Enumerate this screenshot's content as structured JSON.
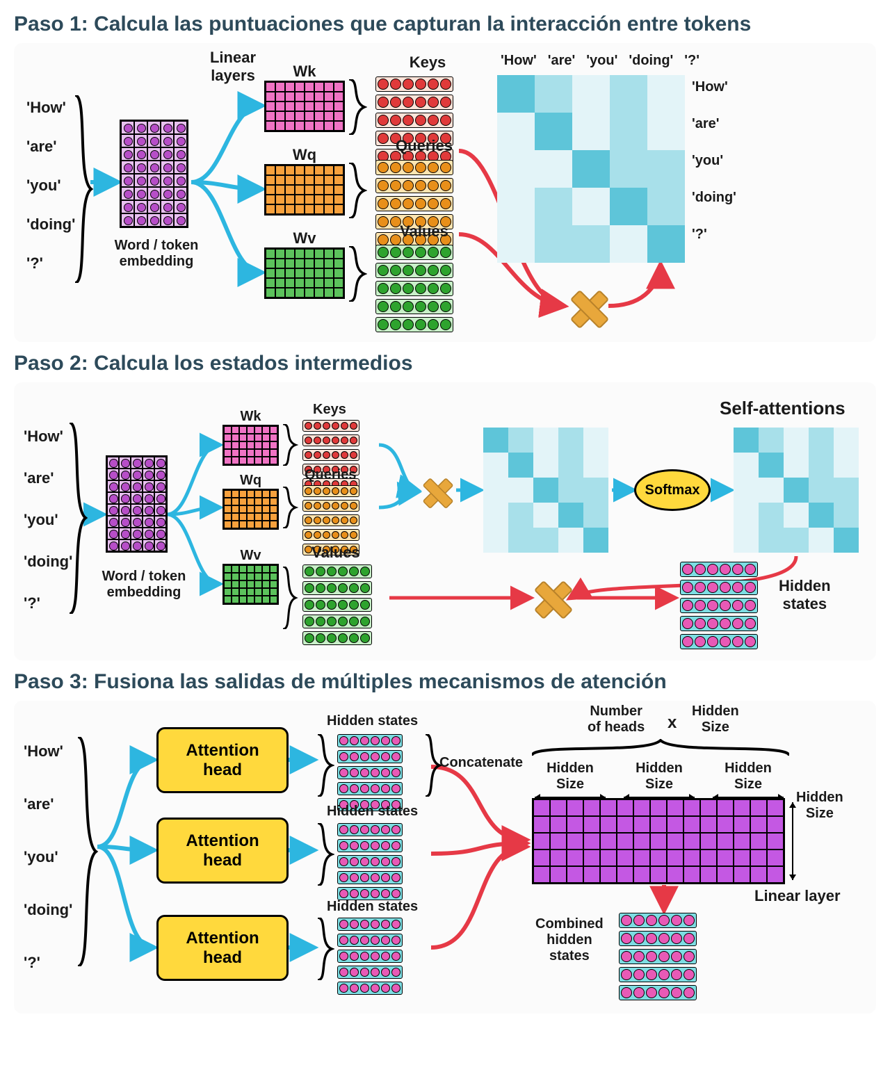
{
  "titles": {
    "step1": "Paso 1: Calcula las puntuaciones que capturan la interacción entre tokens",
    "step2": "Paso 2: Calcula los estados intermedios",
    "step3": "Paso 3: Fusiona las salidas de múltiples mecanismos de atención"
  },
  "tokens": [
    "'How'",
    "'are'",
    "'you'",
    "'doing'",
    "'?'"
  ],
  "labels": {
    "linear_layers": "Linear\nlayers",
    "wk": "Wk",
    "wq": "Wq",
    "wv": "Wv",
    "keys": "Keys",
    "queries": "Queries",
    "values": "Values",
    "word_embed": "Word / token\nembedding",
    "self_attentions": "Self-attentions",
    "softmax": "Softmax",
    "hidden_states": "Hidden\nstates",
    "hidden_states_inline": "Hidden states",
    "attention_head": "Attention\nhead",
    "concatenate": "Concatenate",
    "number_of_heads": "Number\nof heads",
    "x_sym": "x",
    "hidden_size": "Hidden\nSize",
    "hidden_size_inline": "Hidden Size",
    "linear_layer": "Linear layer",
    "combined_hidden": "Combined\nhidden\nstates"
  },
  "colors": {
    "title": "#2d4a5a",
    "panel_bg": "#fbfbfb",
    "text": "#1a1a1a",
    "arrow_blue": "#2db6e0",
    "arrow_red": "#e63946",
    "black": "#000000",
    "embed_bg": "#e8c0f0",
    "embed_dot": "#b74ec8",
    "wk_bg": "#f073c4",
    "wq_bg": "#f7a13d",
    "wv_bg": "#5cc25c",
    "key_row_bg": "#fde4d9",
    "key_dot": "#e03a3a",
    "query_row_bg": "#ffe5b0",
    "query_dot": "#e88f1a",
    "value_row_bg": "#c8f0c8",
    "value_dot": "#2ea32e",
    "hidden_row_bg": "#7ddde3",
    "hidden_dot": "#e85ab6",
    "linear_purple": "#c458e3",
    "yellow_box": "#ffd93d",
    "multiply": "#e8a73b",
    "heat_light": "#e3f4f8",
    "heat_mid": "#a8e0ea",
    "heat_dark": "#5ec5d9"
  },
  "sizes": {
    "embed_matrix": {
      "rows": 8,
      "cols": 5,
      "cell": 19
    },
    "w_matrix_big": {
      "rows": 5,
      "cols": 8,
      "cell": 14
    },
    "w_matrix_small": {
      "rows": 5,
      "cols": 7,
      "cell": 11
    },
    "vec_dots": 6,
    "vec_dot_size": 16,
    "heatmap_big_cell": 54,
    "heatmap_small_cell": 36,
    "linear_layer": {
      "rows": 5,
      "cols": 15,
      "cell": 24
    }
  },
  "heatmap_pattern": [
    [
      2,
      1,
      0,
      1,
      0
    ],
    [
      0,
      2,
      0,
      1,
      0
    ],
    [
      0,
      0,
      2,
      1,
      1
    ],
    [
      0,
      1,
      0,
      2,
      1
    ],
    [
      0,
      1,
      1,
      0,
      2
    ]
  ]
}
